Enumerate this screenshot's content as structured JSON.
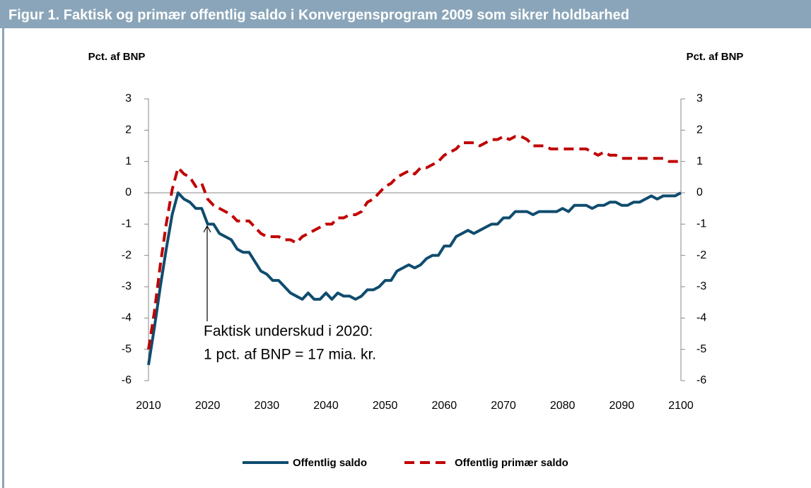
{
  "chart_data": {
    "type": "line",
    "title": "Figur 1. Faktisk og primær offentlig saldo i Konvergensprogram 2009 som sikrer holdbarhed",
    "ylabel": "Pct. af BNP",
    "y2label": "Pct. af BNP",
    "annotation": [
      "Faktisk underskud  i 2020:",
      "1 pct. af BNP = 17  mia. kr."
    ],
    "x": [
      2010,
      2011,
      2012,
      2013,
      2014,
      2015,
      2016,
      2017,
      2018,
      2019,
      2020,
      2021,
      2022,
      2023,
      2024,
      2025,
      2026,
      2027,
      2028,
      2029,
      2030,
      2031,
      2032,
      2033,
      2034,
      2035,
      2036,
      2037,
      2038,
      2039,
      2040,
      2041,
      2042,
      2043,
      2044,
      2045,
      2046,
      2047,
      2048,
      2049,
      2050,
      2051,
      2052,
      2053,
      2054,
      2055,
      2056,
      2057,
      2058,
      2059,
      2060,
      2061,
      2062,
      2063,
      2064,
      2065,
      2066,
      2067,
      2068,
      2069,
      2070,
      2071,
      2072,
      2073,
      2074,
      2075,
      2076,
      2077,
      2078,
      2079,
      2080,
      2081,
      2082,
      2083,
      2084,
      2085,
      2086,
      2087,
      2088,
      2089,
      2090,
      2091,
      2092,
      2093,
      2094,
      2095,
      2096,
      2097,
      2098,
      2099,
      2100
    ],
    "series": [
      {
        "name": "Offentlig saldo",
        "color": "#0f4c6e",
        "dash": false,
        "values": [
          -5.5,
          -4.3,
          -3.0,
          -1.8,
          -0.7,
          0.0,
          -0.2,
          -0.3,
          -0.5,
          -0.5,
          -1.0,
          -1.0,
          -1.3,
          -1.4,
          -1.5,
          -1.8,
          -1.9,
          -1.9,
          -2.2,
          -2.5,
          -2.6,
          -2.8,
          -2.8,
          -3.0,
          -3.2,
          -3.3,
          -3.4,
          -3.2,
          -3.4,
          -3.4,
          -3.2,
          -3.4,
          -3.2,
          -3.3,
          -3.3,
          -3.4,
          -3.3,
          -3.1,
          -3.1,
          -3.0,
          -2.8,
          -2.8,
          -2.5,
          -2.4,
          -2.3,
          -2.4,
          -2.3,
          -2.1,
          -2.0,
          -2.0,
          -1.7,
          -1.7,
          -1.4,
          -1.3,
          -1.2,
          -1.3,
          -1.2,
          -1.1,
          -1.0,
          -1.0,
          -0.8,
          -0.8,
          -0.6,
          -0.6,
          -0.6,
          -0.7,
          -0.6,
          -0.6,
          -0.6,
          -0.6,
          -0.5,
          -0.6,
          -0.4,
          -0.4,
          -0.4,
          -0.5,
          -0.4,
          -0.4,
          -0.3,
          -0.3,
          -0.4,
          -0.4,
          -0.3,
          -0.3,
          -0.2,
          -0.1,
          -0.2,
          -0.1,
          -0.1,
          -0.1,
          0.0
        ]
      },
      {
        "name": "Offentlig primær saldo",
        "color": "#c00000",
        "dash": true,
        "values": [
          -5.0,
          -3.8,
          -2.3,
          -1.0,
          0.1,
          0.8,
          0.6,
          0.5,
          0.2,
          0.3,
          -0.2,
          -0.4,
          -0.5,
          -0.6,
          -0.7,
          -0.9,
          -0.9,
          -0.9,
          -1.1,
          -1.3,
          -1.4,
          -1.4,
          -1.4,
          -1.5,
          -1.5,
          -1.6,
          -1.4,
          -1.3,
          -1.2,
          -1.1,
          -1.0,
          -1.0,
          -0.8,
          -0.8,
          -0.7,
          -0.7,
          -0.6,
          -0.3,
          -0.2,
          0.0,
          0.2,
          0.3,
          0.5,
          0.6,
          0.7,
          0.6,
          0.8,
          0.8,
          0.9,
          1.0,
          1.2,
          1.3,
          1.4,
          1.6,
          1.6,
          1.6,
          1.5,
          1.6,
          1.7,
          1.7,
          1.8,
          1.7,
          1.8,
          1.8,
          1.7,
          1.5,
          1.5,
          1.5,
          1.4,
          1.4,
          1.4,
          1.4,
          1.4,
          1.4,
          1.4,
          1.3,
          1.2,
          1.3,
          1.2,
          1.2,
          1.1,
          1.1,
          1.1,
          1.1,
          1.1,
          1.1,
          1.1,
          1.1,
          1.0,
          1.0,
          1.0
        ]
      }
    ],
    "xlim": [
      2010,
      2100
    ],
    "xticks": [
      2010,
      2020,
      2030,
      2040,
      2050,
      2060,
      2070,
      2080,
      2090,
      2100
    ],
    "ylim": [
      -6,
      3
    ],
    "yticks": [
      -6,
      -5,
      -4,
      -3,
      -2,
      -1,
      0,
      1,
      2,
      3
    ],
    "y2lim": [
      -6,
      3
    ],
    "y2ticks": [
      -6,
      -5,
      -4,
      -3,
      -2,
      -1,
      0,
      1,
      2,
      3
    ],
    "grid": false,
    "legend": "bottom"
  }
}
